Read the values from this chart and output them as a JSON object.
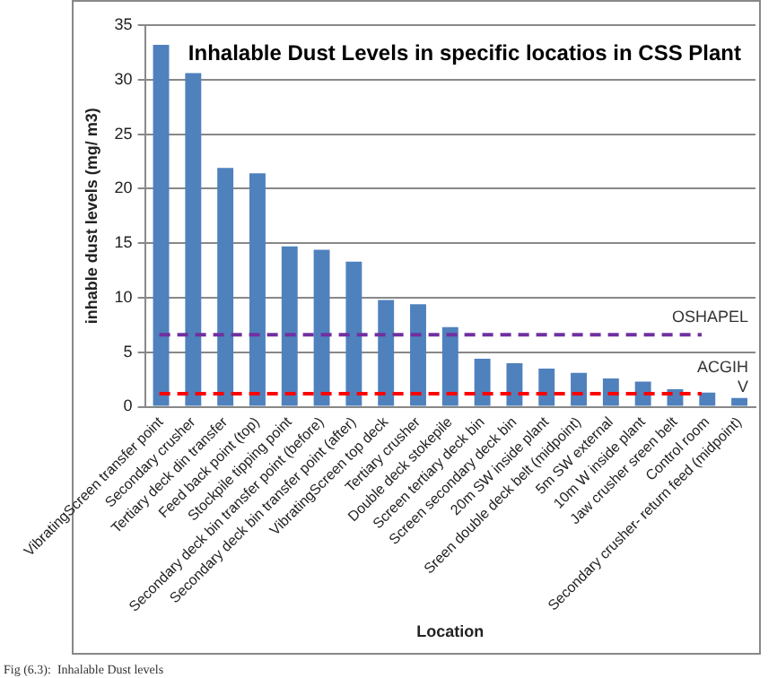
{
  "chart_data": {
    "type": "bar",
    "title": "Inhalable Dust Levels in specific locatios in CSS Plant",
    "xlabel": "Location",
    "ylabel": "inhable dust levels (mg/ m3)",
    "categories": [
      "VibratingScreen transfer point",
      "Secondary crusher",
      "Tertiary deck din transfer",
      "Feed back point (top)",
      "Stockpile tipping point",
      "Secondary deck bin transfer point (before)",
      "Secondary deck bin transfer point (after)",
      "VibratingScreen top deck",
      "Tertiary crusher",
      "Double deck stokepile",
      "Screen tertiary deck bin",
      "Screen secondary deck bin",
      "20m SW inside plant",
      "Sreen double deck belt (midpoint)",
      "5m SW external",
      "10m W inside plant",
      "Jaw crusher sreen belt",
      "Control room",
      "Secondary crusher- return feed (midpoint)"
    ],
    "values": [
      33.2,
      30.6,
      21.9,
      21.4,
      14.7,
      14.4,
      13.3,
      9.8,
      9.4,
      7.3,
      4.4,
      4.0,
      3.5,
      3.1,
      2.6,
      2.3,
      1.6,
      1.3,
      0.8
    ],
    "color": "#4f81bd",
    "ylim": [
      0,
      35
    ],
    "yticks": [
      0,
      5,
      10,
      15,
      20,
      25,
      30,
      35
    ],
    "grid": "y",
    "ref_lines": [
      {
        "axis": "y",
        "value": 6.6,
        "label": "OSHAPEL",
        "color": "#7030a0",
        "line_style": "dashed"
      },
      {
        "axis": "y",
        "value": 1.2,
        "label": "ACGIH\nV",
        "color": "#ff0000",
        "line_style": "dashed"
      }
    ],
    "annotations": [
      "Fig (6.3):  Inhalable Dust levels"
    ]
  }
}
